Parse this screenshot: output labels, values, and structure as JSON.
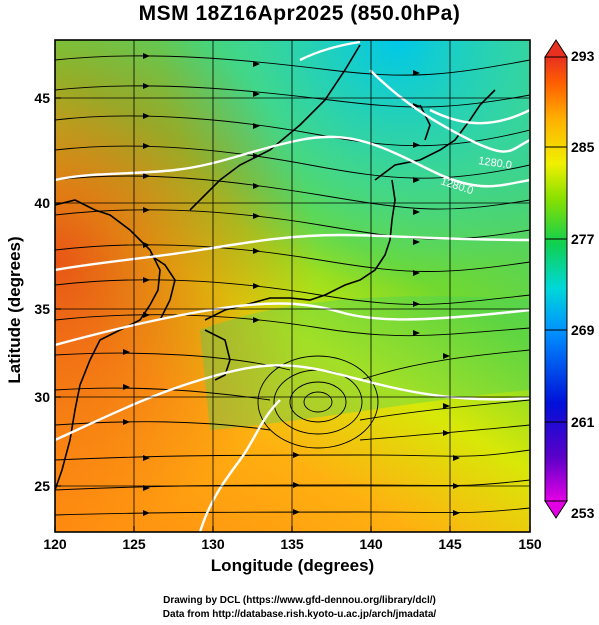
{
  "title": "MSM 18Z16Apr2025 (850.0hPa)",
  "x_axis": {
    "label": "Longitude (degrees)",
    "ticks": [
      "120",
      "125",
      "130",
      "135",
      "140",
      "145",
      "150"
    ],
    "range": [
      120,
      150
    ]
  },
  "y_axis": {
    "label": "Latitude  (degrees)",
    "ticks": [
      "25",
      "30",
      "35",
      "40",
      "45"
    ],
    "range": [
      22.5,
      48
    ]
  },
  "colorbar": {
    "ticks": [
      "293",
      "285",
      "277",
      "269",
      "261",
      "253"
    ],
    "range": [
      253,
      293
    ],
    "colors": [
      "#e400e4",
      "#5a00c8",
      "#0010d8",
      "#0090ff",
      "#00d8d8",
      "#10d050",
      "#88e000",
      "#f0f000",
      "#ffb000",
      "#ff6000",
      "#e83020"
    ]
  },
  "contour_labels": [
    "1280.0",
    "1280.0"
  ],
  "credits": [
    "Drawing by DCL (https://www.gfd-dennou.org/library/dcl/)",
    "Data from http://database.rish.kyoto-u.ac.jp/arch/jmadata/"
  ]
}
